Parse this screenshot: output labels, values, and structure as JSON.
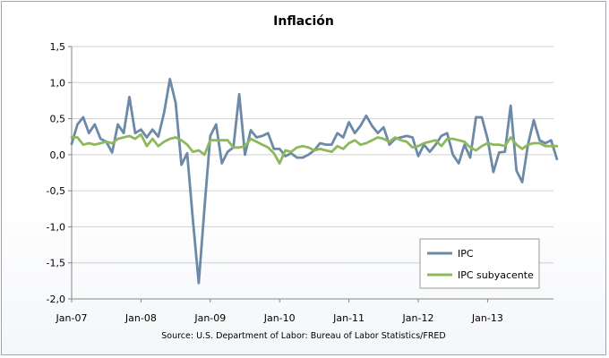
{
  "chart_data": {
    "type": "line",
    "title": "Inflación",
    "source": "Source: U.S. Department of Labor: Bureau of Labor Statistics/FRED",
    "xlabel": "",
    "ylabel": "",
    "x_start": "2007-01",
    "x_tick_labels": [
      "Jan-07",
      "Jan-08",
      "Jan-09",
      "Jan-10",
      "Jan-11",
      "Jan-12",
      "Jan-13"
    ],
    "y_tick_labels": [
      "1,5",
      "1,0",
      "0,5",
      "0,0",
      "-0,5",
      "-1,0",
      "-1,5",
      "-2,0"
    ],
    "ylim": [
      -2.0,
      1.5
    ],
    "ytick_step": 0.5,
    "grid": true,
    "legend_position": "bottom-right",
    "series": [
      {
        "name": "IPC",
        "color": "#6c8aa8",
        "values": [
          0.15,
          0.42,
          0.52,
          0.3,
          0.42,
          0.22,
          0.18,
          0.03,
          0.42,
          0.3,
          0.8,
          0.3,
          0.35,
          0.24,
          0.35,
          0.25,
          0.58,
          1.05,
          0.72,
          -0.14,
          0.02,
          -0.92,
          -1.78,
          -0.74,
          0.26,
          0.42,
          -0.12,
          0.04,
          0.1,
          0.84,
          0.0,
          0.34,
          0.24,
          0.26,
          0.3,
          0.08,
          0.08,
          -0.02,
          0.02,
          -0.04,
          -0.04,
          0.0,
          0.06,
          0.16,
          0.14,
          0.14,
          0.3,
          0.24,
          0.45,
          0.3,
          0.4,
          0.54,
          0.4,
          0.3,
          0.38,
          0.14,
          0.22,
          0.24,
          0.26,
          0.24,
          -0.02,
          0.14,
          0.04,
          0.14,
          0.26,
          0.3,
          0.0,
          -0.12,
          0.14,
          -0.04,
          0.52,
          0.52,
          0.22,
          -0.24,
          0.03,
          0.04,
          0.68,
          -0.22,
          -0.38,
          0.14,
          0.48,
          0.2,
          0.16,
          0.2,
          -0.06
        ]
      },
      {
        "name": "IPC subyacente",
        "color": "#8db85c",
        "values": [
          0.24,
          0.24,
          0.14,
          0.16,
          0.14,
          0.16,
          0.18,
          0.16,
          0.22,
          0.24,
          0.26,
          0.22,
          0.28,
          0.12,
          0.22,
          0.12,
          0.18,
          0.22,
          0.24,
          0.2,
          0.14,
          0.04,
          0.06,
          0.0,
          0.2,
          0.2,
          0.2,
          0.2,
          0.1,
          0.1,
          0.12,
          0.22,
          0.18,
          0.14,
          0.1,
          0.02,
          -0.12,
          0.06,
          0.04,
          0.1,
          0.12,
          0.1,
          0.06,
          0.08,
          0.06,
          0.04,
          0.12,
          0.08,
          0.16,
          0.2,
          0.14,
          0.16,
          0.2,
          0.24,
          0.22,
          0.18,
          0.24,
          0.2,
          0.18,
          0.1,
          0.12,
          0.16,
          0.18,
          0.2,
          0.12,
          0.22,
          0.22,
          0.2,
          0.18,
          0.1,
          0.06,
          0.12,
          0.16,
          0.14,
          0.14,
          0.12,
          0.24,
          0.14,
          0.08,
          0.14,
          0.16,
          0.16,
          0.12,
          0.12,
          0.12
        ]
      }
    ]
  }
}
